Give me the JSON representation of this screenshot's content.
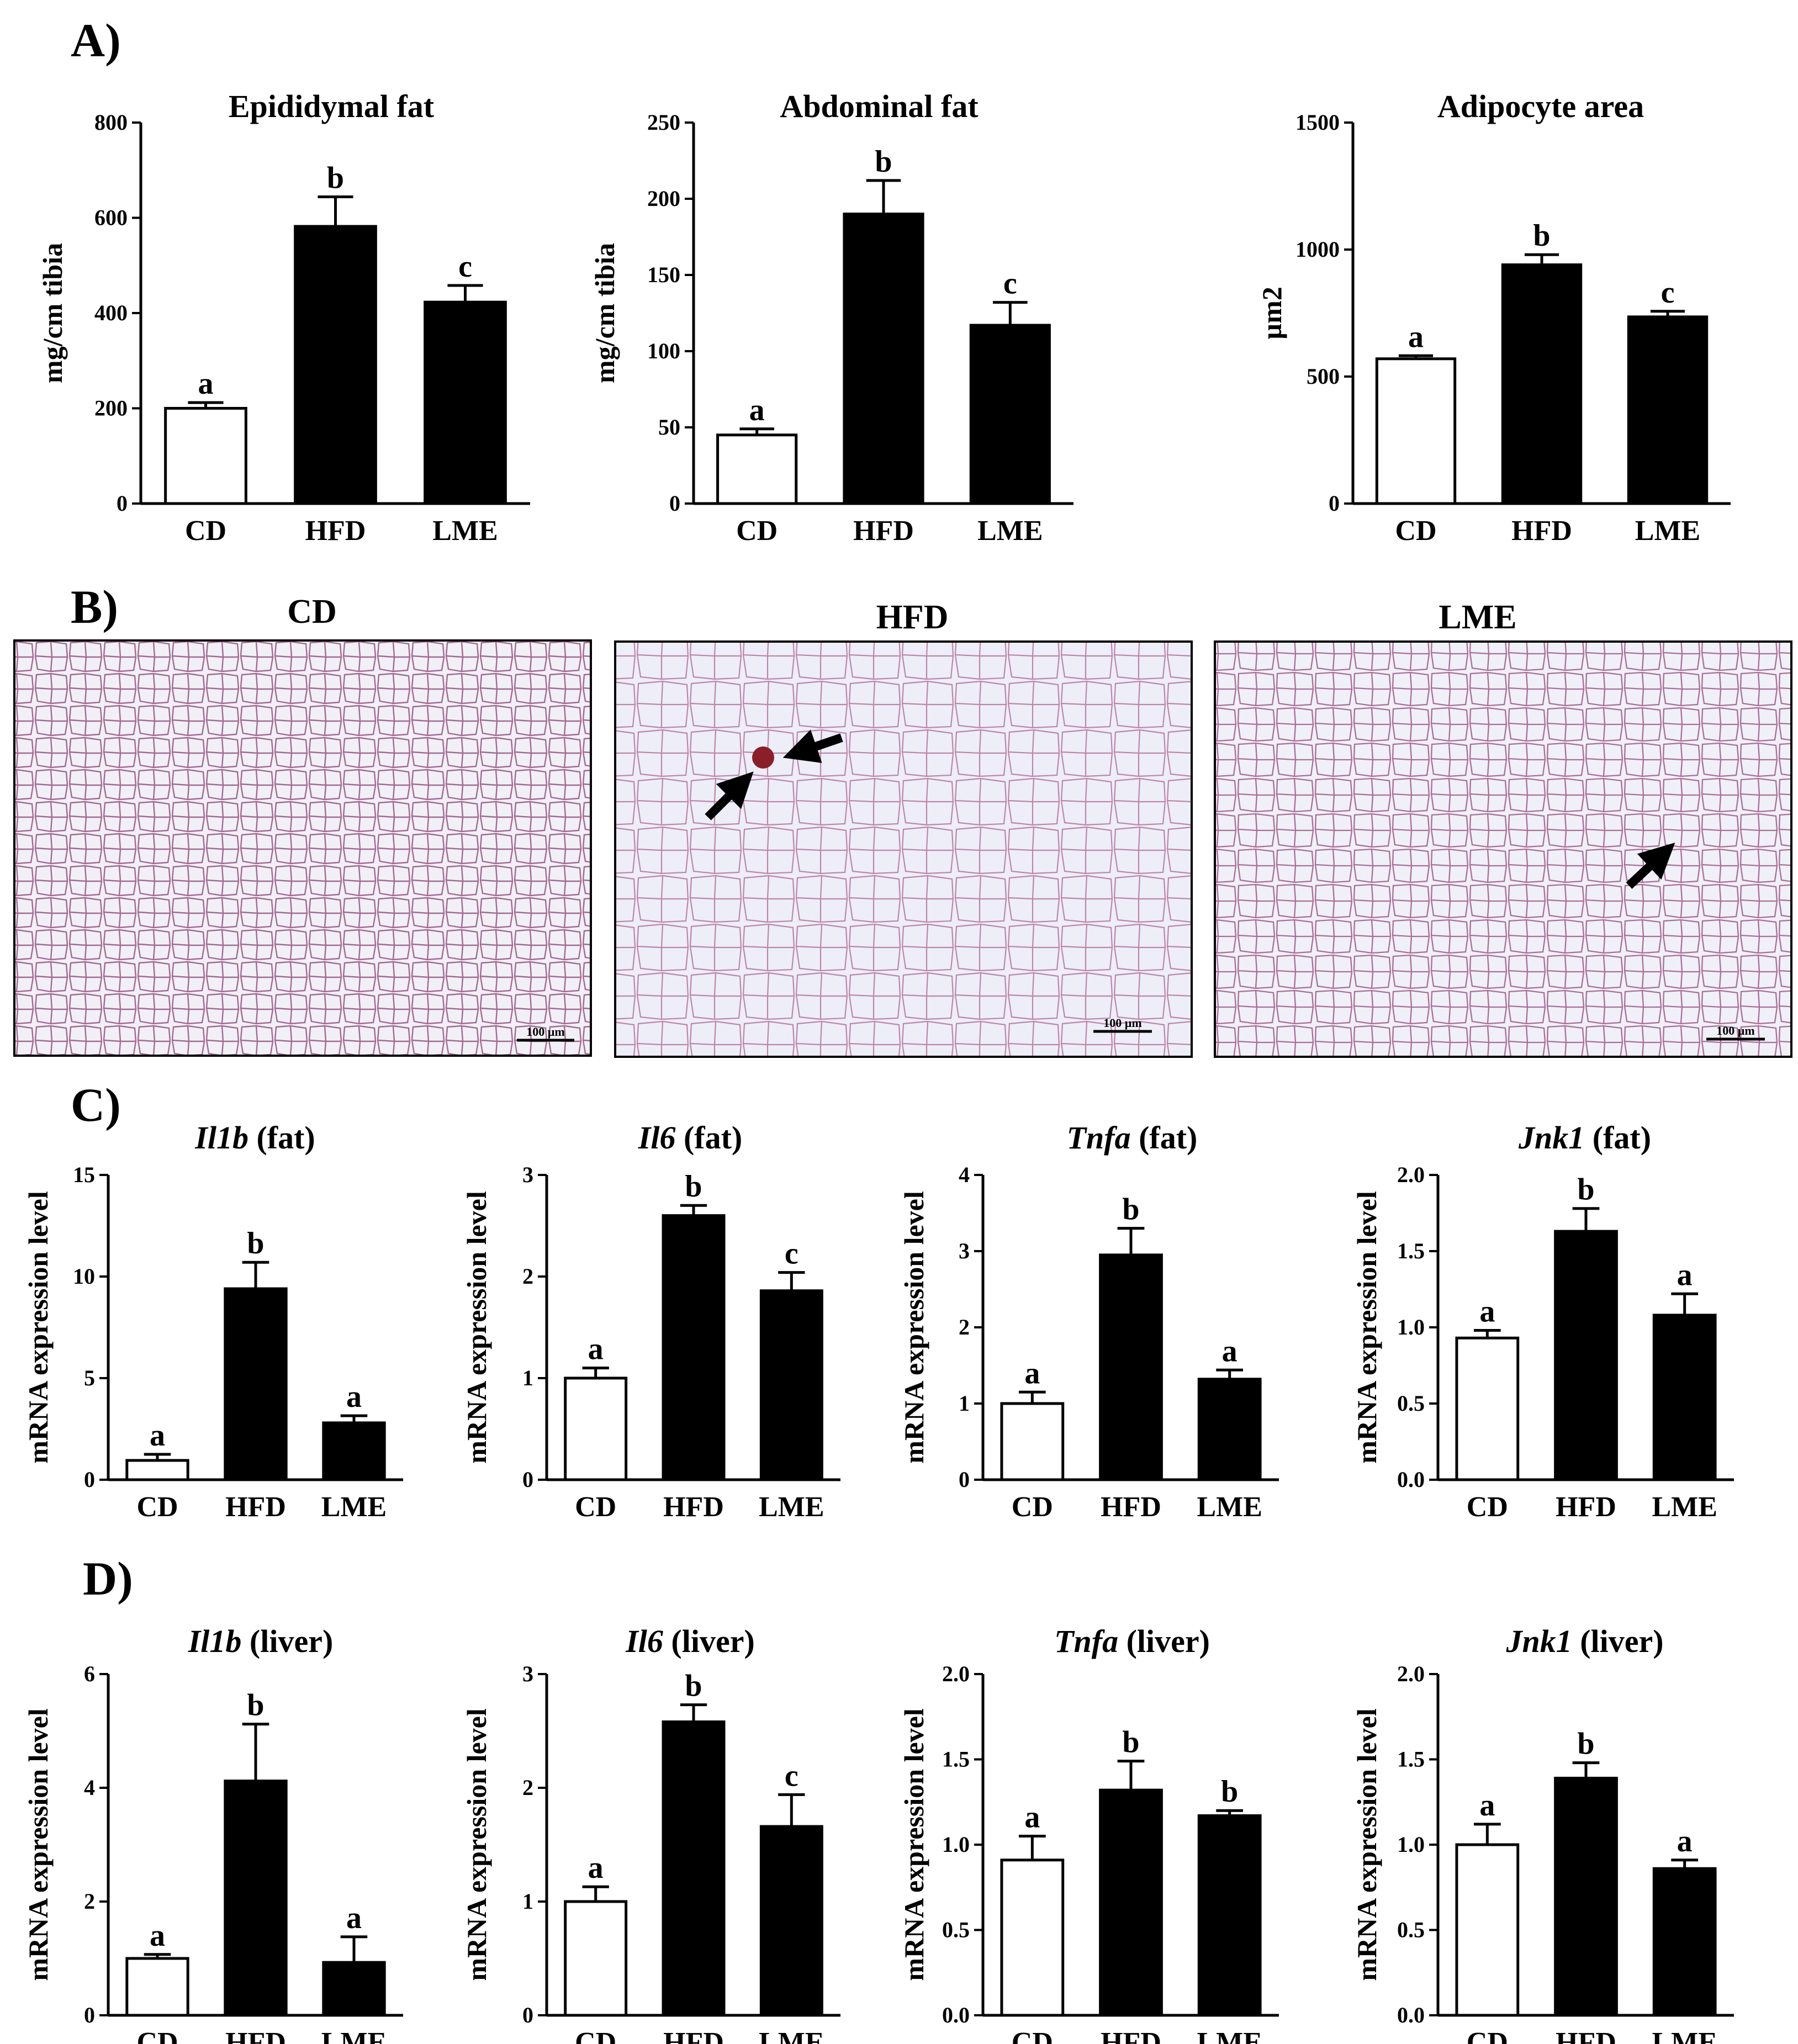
{
  "panels": {
    "A": "A)",
    "B": "B)",
    "C": "C)",
    "D": "D)"
  },
  "colors": {
    "cd_fill": "#ffffff",
    "treated_fill": "#000000",
    "tissue": "#b05a8c"
  },
  "micrographs": [
    {
      "title": "CD",
      "scale": "100 µm",
      "arrows": 0
    },
    {
      "title": "HFD",
      "scale": "100 µm",
      "arrows": 2
    },
    {
      "title": "LME",
      "scale": "100 µm",
      "arrows": 1
    }
  ],
  "chart_data": [
    {
      "type": "bar",
      "title": "Epididymal fat",
      "title_gene": "",
      "ylabel": "mg/cm tibia",
      "categories": [
        "CD",
        "HFD",
        "LME"
      ],
      "values": [
        200,
        582,
        423
      ],
      "errors": [
        12,
        62,
        35
      ],
      "letters": [
        "a",
        "b",
        "c"
      ],
      "ylim": [
        0,
        800
      ],
      "yticks": [
        "0",
        "200",
        "400",
        "600",
        "800"
      ]
    },
    {
      "type": "bar",
      "title": "Abdominal fat",
      "title_gene": "",
      "ylabel": "mg/cm tibia",
      "categories": [
        "CD",
        "HFD",
        "LME"
      ],
      "values": [
        45,
        190,
        117
      ],
      "errors": [
        4,
        22,
        15
      ],
      "letters": [
        "a",
        "b",
        "c"
      ],
      "ylim": [
        0,
        250
      ],
      "yticks": [
        "0",
        "50",
        "100",
        "150",
        "200",
        "250"
      ]
    },
    {
      "type": "bar",
      "title": "Adipocyte area",
      "title_gene": "",
      "ylabel": "µm2",
      "categories": [
        "CD",
        "HFD",
        "LME"
      ],
      "values": [
        570,
        940,
        735
      ],
      "errors": [
        12,
        40,
        22
      ],
      "letters": [
        "a",
        "b",
        "c"
      ],
      "ylim": [
        0,
        1500
      ],
      "yticks": [
        "0",
        "500",
        "1000",
        "1500"
      ]
    },
    {
      "type": "bar",
      "title": " (fat)",
      "title_gene": "Il1b",
      "ylabel": "mRNA expression level",
      "categories": [
        "CD",
        "HFD",
        "LME"
      ],
      "values": [
        0.95,
        9.4,
        2.8
      ],
      "errors": [
        0.3,
        1.3,
        0.35
      ],
      "letters": [
        "a",
        "b",
        "a"
      ],
      "ylim": [
        0,
        15
      ],
      "yticks": [
        "0",
        "5",
        "10",
        "15"
      ]
    },
    {
      "type": "bar",
      "title": " (fat)",
      "title_gene": "Il6",
      "ylabel": "mRNA expression level",
      "categories": [
        "CD",
        "HFD",
        "LME"
      ],
      "values": [
        1.0,
        2.6,
        1.86
      ],
      "errors": [
        0.1,
        0.1,
        0.18
      ],
      "letters": [
        "a",
        "b",
        "c"
      ],
      "ylim": [
        0,
        3
      ],
      "yticks": [
        "0",
        "1",
        "2",
        "3"
      ]
    },
    {
      "type": "bar",
      "title": " (fat)",
      "title_gene": "Tnfa",
      "ylabel": "mRNA expression level",
      "categories": [
        "CD",
        "HFD",
        "LME"
      ],
      "values": [
        1.0,
        2.95,
        1.32
      ],
      "errors": [
        0.15,
        0.35,
        0.12
      ],
      "letters": [
        "a",
        "b",
        "a"
      ],
      "ylim": [
        0,
        4
      ],
      "yticks": [
        "0",
        "1",
        "2",
        "3",
        "4"
      ]
    },
    {
      "type": "bar",
      "title": " (fat)",
      "title_gene": "Jnk1",
      "ylabel": "mRNA expression level",
      "categories": [
        "CD",
        "HFD",
        "LME"
      ],
      "values": [
        0.93,
        1.63,
        1.08
      ],
      "errors": [
        0.05,
        0.15,
        0.14
      ],
      "letters": [
        "a",
        "b",
        "a"
      ],
      "ylim": [
        0,
        2
      ],
      "yticks": [
        "0.0",
        "0.5",
        "1.0",
        "1.5",
        "2.0"
      ]
    },
    {
      "type": "bar",
      "title": " (liver)",
      "title_gene": "Il1b",
      "ylabel": "mRNA expression level",
      "categories": [
        "CD",
        "HFD",
        "LME"
      ],
      "values": [
        1.0,
        4.12,
        0.93
      ],
      "errors": [
        0.07,
        1.0,
        0.45
      ],
      "letters": [
        "a",
        "b",
        "a"
      ],
      "ylim": [
        0,
        6
      ],
      "yticks": [
        "0",
        "2",
        "4",
        "6"
      ]
    },
    {
      "type": "bar",
      "title": " (liver)",
      "title_gene": "Il6",
      "ylabel": "mRNA expression level",
      "categories": [
        "CD",
        "HFD",
        "LME"
      ],
      "values": [
        1.0,
        2.58,
        1.66
      ],
      "errors": [
        0.13,
        0.15,
        0.28
      ],
      "letters": [
        "a",
        "b",
        "c"
      ],
      "ylim": [
        0,
        3
      ],
      "yticks": [
        "0",
        "1",
        "2",
        "3"
      ]
    },
    {
      "type": "bar",
      "title": " (liver)",
      "title_gene": "Tnfa",
      "ylabel": "mRNA expression level",
      "categories": [
        "CD",
        "HFD",
        "LME"
      ],
      "values": [
        0.91,
        1.32,
        1.17
      ],
      "errors": [
        0.14,
        0.17,
        0.03
      ],
      "letters": [
        "a",
        "b",
        "b"
      ],
      "ylim": [
        0,
        2
      ],
      "yticks": [
        "0.0",
        "0.5",
        "1.0",
        "1.5",
        "2.0"
      ]
    },
    {
      "type": "bar",
      "title": " (liver)",
      "title_gene": "Jnk1",
      "ylabel": "mRNA expression level",
      "categories": [
        "CD",
        "HFD",
        "LME"
      ],
      "values": [
        1.0,
        1.39,
        0.86
      ],
      "errors": [
        0.12,
        0.09,
        0.05
      ],
      "letters": [
        "a",
        "b",
        "a"
      ],
      "ylim": [
        0,
        2
      ],
      "yticks": [
        "0.0",
        "0.5",
        "1.0",
        "1.5",
        "2.0"
      ]
    }
  ]
}
